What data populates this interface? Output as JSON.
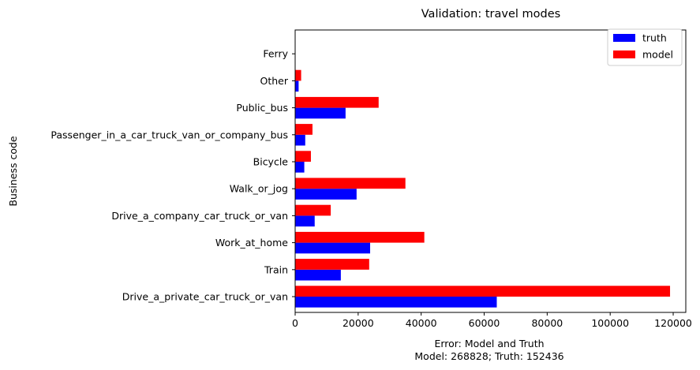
{
  "chart_data": {
    "type": "bar",
    "orientation": "horizontal",
    "title": "Validation: travel modes",
    "ylabel": "Business code",
    "xlabel_lines": [
      "Error: Model and Truth",
      "Model: 268828; Truth: 152436"
    ],
    "categories": [
      "Drive_a_private_car_truck_or_van",
      "Train",
      "Work_at_home",
      "Drive_a_company_car_truck_or_van",
      "Walk_or_jog",
      "Bicycle",
      "Passenger_in_a_car_truck_van_or_company_bus",
      "Public_bus",
      "Other",
      "Ferry"
    ],
    "series": [
      {
        "name": "truth",
        "color": "#0000ff",
        "values": [
          64000,
          14500,
          23800,
          6200,
          19500,
          2900,
          3200,
          16000,
          1100,
          0
        ]
      },
      {
        "name": "model",
        "color": "#ff0000",
        "values": [
          119000,
          23500,
          41000,
          11300,
          35000,
          5000,
          5500,
          26500,
          1900,
          0
        ]
      }
    ],
    "xlim": [
      0,
      124000
    ],
    "xticks": [
      0,
      20000,
      40000,
      60000,
      80000,
      100000,
      120000
    ],
    "xtick_labels": [
      "0",
      "20000",
      "40000",
      "60000",
      "80000",
      "100000",
      "120000"
    ],
    "legend": "top-right",
    "grid": false
  }
}
